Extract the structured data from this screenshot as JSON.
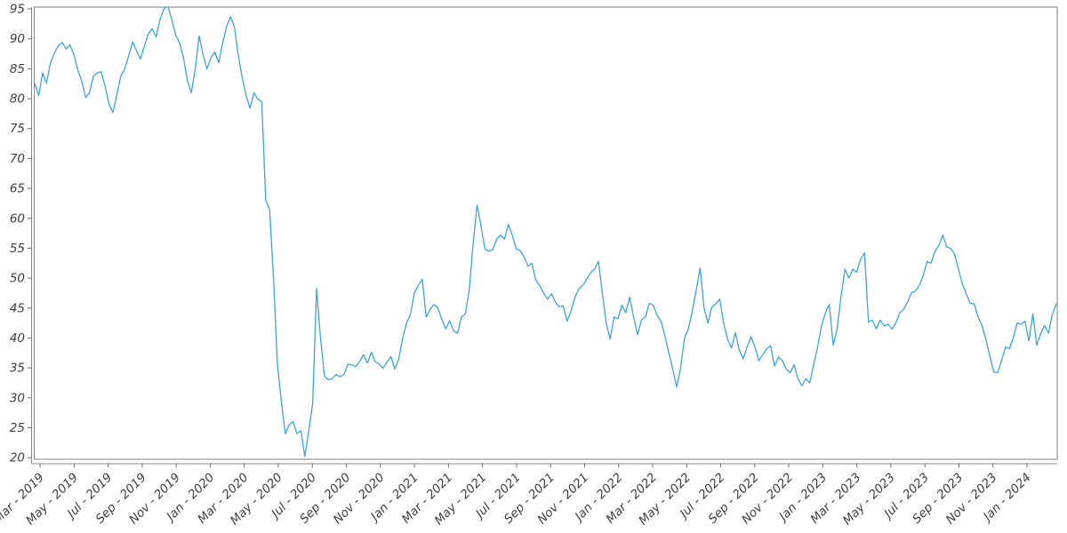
{
  "figure": {
    "background": "#ffffff",
    "frame_color": "#8a8a8a",
    "tick_color": "#6e6e6e",
    "label_color": "#3d3d3d"
  },
  "chart_data": {
    "type": "line",
    "title": "",
    "xlabel": "",
    "ylabel": "",
    "legend": "none",
    "grid": "off",
    "line_color": "#3da4dc",
    "line_width": 1.3,
    "x_axis": {
      "range": [
        2019.138,
        2024.148
      ],
      "ticks": [
        {
          "label": "Mar - 2019",
          "t": 2019.1667
        },
        {
          "label": "May - 2019",
          "t": 2019.3333
        },
        {
          "label": "Jul - 2019",
          "t": 2019.5
        },
        {
          "label": "Sep - 2019",
          "t": 2019.6667
        },
        {
          "label": "Nov - 2019",
          "t": 2019.8333
        },
        {
          "label": "Jan - 2020",
          "t": 2020.0
        },
        {
          "label": "Mar - 2020",
          "t": 2020.1667
        },
        {
          "label": "May - 2020",
          "t": 2020.3333
        },
        {
          "label": "Jul - 2020",
          "t": 2020.5
        },
        {
          "label": "Sep - 2020",
          "t": 2020.6667
        },
        {
          "label": "Nov - 2020",
          "t": 2020.8333
        },
        {
          "label": "Jan - 2021",
          "t": 2021.0
        },
        {
          "label": "Mar - 2021",
          "t": 2021.1667
        },
        {
          "label": "May - 2021",
          "t": 2021.3333
        },
        {
          "label": "Jul - 2021",
          "t": 2021.5
        },
        {
          "label": "Sep - 2021",
          "t": 2021.6667
        },
        {
          "label": "Nov - 2021",
          "t": 2021.8333
        },
        {
          "label": "Jan - 2022",
          "t": 2022.0
        },
        {
          "label": "Mar - 2022",
          "t": 2022.1667
        },
        {
          "label": "May - 2022",
          "t": 2022.3333
        },
        {
          "label": "Jul - 2022",
          "t": 2022.5
        },
        {
          "label": "Sep - 2022",
          "t": 2022.6667
        },
        {
          "label": "Nov - 2022",
          "t": 2022.8333
        },
        {
          "label": "Jan - 2023",
          "t": 2023.0
        },
        {
          "label": "Mar - 2023",
          "t": 2023.1667
        },
        {
          "label": "May - 2023",
          "t": 2023.3333
        },
        {
          "label": "Jul - 2023",
          "t": 2023.5
        },
        {
          "label": "Sep - 2023",
          "t": 2023.6667
        },
        {
          "label": "Nov - 2023",
          "t": 2023.8333
        },
        {
          "label": "Jan - 2024",
          "t": 2024.0
        }
      ]
    },
    "y_axis": {
      "range": [
        19.73,
        95.3
      ],
      "ticks": [
        20,
        25,
        30,
        35,
        40,
        45,
        50,
        55,
        60,
        65,
        70,
        75,
        80,
        85,
        90,
        95
      ]
    },
    "points": {
      "t_start": 2019.1406,
      "t_end": 2024.1436,
      "values": [
        82.5,
        80.5,
        84.3,
        82.6,
        86,
        87.6,
        88.8,
        89.4,
        88.3,
        89,
        87.3,
        84.8,
        83,
        80.2,
        81,
        83.8,
        84.3,
        84.5,
        82,
        79,
        77.7,
        80.8,
        83.8,
        85,
        87.2,
        89.5,
        88,
        86.6,
        88.8,
        90.8,
        91.7,
        90.3,
        93.2,
        95,
        95.5,
        93.2,
        90.7,
        89.3,
        86.8,
        83,
        81,
        85,
        90.5,
        87.3,
        85,
        86.8,
        87.8,
        86,
        89.3,
        92,
        93.7,
        92,
        87.2,
        83.5,
        80.5,
        78.4,
        81,
        79.9,
        79.5,
        63,
        61.5,
        50,
        35.5,
        29.4,
        24,
        25.5,
        26,
        24,
        24.5,
        20.2,
        24.5,
        29,
        48.3,
        40,
        33.7,
        33,
        33.2,
        33.9,
        33.5,
        33.9,
        35.6,
        35.5,
        35.2,
        36.1,
        37.2,
        35.8,
        37.6,
        36,
        35.7,
        34.9,
        36,
        36.9,
        34.8,
        36.5,
        40,
        42.5,
        44,
        47.6,
        48.8,
        49.8,
        43.5,
        44.8,
        45.6,
        45,
        43.1,
        41.5,
        42.9,
        41.2,
        40.8,
        43.5,
        44,
        48,
        55.8,
        62.2,
        58.8,
        54.9,
        54.5,
        54.8,
        56.5,
        57.2,
        56.5,
        59,
        57.2,
        54.9,
        54.6,
        53.6,
        52,
        52.5,
        49.7,
        48.8,
        47.5,
        46.5,
        47.4,
        46,
        45.2,
        45.4,
        42.8,
        44.5,
        46.8,
        48.2,
        48.8,
        49.8,
        50.9,
        51.5,
        52.8,
        47.5,
        42.5,
        39.8,
        43.5,
        43.2,
        45.5,
        44.2,
        46.8,
        43.5,
        40.6,
        43,
        43.5,
        45.8,
        45.5,
        43.8,
        42.8,
        40.3,
        37.5,
        34.8,
        31.8,
        35,
        40,
        41.5,
        44.5,
        48,
        51.7,
        45,
        42.5,
        45.2,
        45.7,
        46.5,
        42.5,
        39.8,
        38.3,
        40.9,
        38,
        36.5,
        38.5,
        40.2,
        38.5,
        36.2,
        37.2,
        38.2,
        38.7,
        35.3,
        36.8,
        36.2,
        34.8,
        34.2,
        35.5,
        33.2,
        32,
        33.2,
        32.5,
        35.5,
        38.5,
        42,
        44.2,
        45.6,
        38.8,
        41.5,
        47,
        51.5,
        50,
        51.5,
        51,
        53.2,
        54.2,
        42.7,
        43,
        41.5,
        43,
        42,
        42.3,
        41.5,
        42.5,
        44.2,
        44.8,
        46,
        47.6,
        47.8,
        48.8,
        50.5,
        52.8,
        52.5,
        54.5,
        55.5,
        57.2,
        55.2,
        55,
        54,
        51.5,
        49,
        47.3,
        45.8,
        45.7,
        43.5,
        42.1,
        39.8,
        37,
        34.3,
        34.2,
        36.2,
        38.5,
        38.2,
        40,
        42.5,
        42.3,
        42.8,
        39.5,
        44,
        38.8,
        40.7,
        42.1,
        40.8,
        44,
        45.7
      ]
    }
  }
}
